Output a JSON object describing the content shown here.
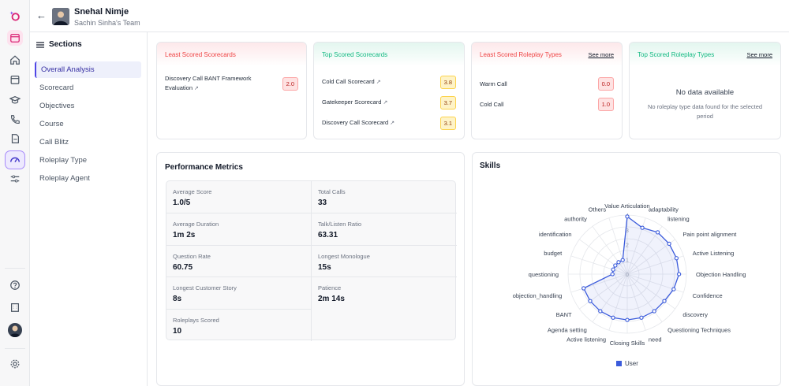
{
  "header": {
    "user_name": "Snehal Nimje",
    "team": "Sachin Sinha's Team"
  },
  "sections": {
    "title": "Sections",
    "items": [
      {
        "label": "Overall Analysis",
        "active": true
      },
      {
        "label": "Scorecard"
      },
      {
        "label": "Objectives"
      },
      {
        "label": "Course"
      },
      {
        "label": "Call Blitz"
      },
      {
        "label": "Roleplay Type"
      },
      {
        "label": "Roleplay Agent"
      }
    ]
  },
  "cards": {
    "least_scorecards": {
      "title": "Least Scored Scorecards",
      "rows": [
        {
          "label": "Discovery Call BANT Framework Evaluation",
          "score": "2.0"
        }
      ]
    },
    "top_scorecards": {
      "title": "Top Scored Scorecards",
      "rows": [
        {
          "label": "Cold Call Scorecard",
          "score": "3.8"
        },
        {
          "label": "Gatekeeper Scorecard",
          "score": "3.7"
        },
        {
          "label": "Discovery Call Scorecard",
          "score": "3.1"
        }
      ]
    },
    "least_roleplay": {
      "title": "Least Scored Roleplay Types",
      "see_more": "See more",
      "rows": [
        {
          "label": "Warm Call",
          "score": "0.0"
        },
        {
          "label": "Cold Call",
          "score": "1.0"
        }
      ]
    },
    "top_roleplay": {
      "title": "Top Scored Roleplay Types",
      "see_more": "See more",
      "empty_title": "No data available",
      "empty_sub": "No roleplay type data found for the selected period"
    }
  },
  "performance": {
    "title": "Performance Metrics",
    "metrics": [
      {
        "label": "Average Score",
        "value": "1.0/5"
      },
      {
        "label": "Total Calls",
        "value": "33"
      },
      {
        "label": "Average Duration",
        "value": "1m 2s"
      },
      {
        "label": "Talk/Listen Ratio",
        "value": "63.31"
      },
      {
        "label": "Question Rate",
        "value": "60.75"
      },
      {
        "label": "Longest Monologue",
        "value": "15s"
      },
      {
        "label": "Longest Customer Story",
        "value": "8s"
      },
      {
        "label": "Patience",
        "value": "2m 14s"
      },
      {
        "label": "Roleplays Scored",
        "value": "10"
      }
    ]
  },
  "skills": {
    "title": "Skills",
    "chart_data": {
      "type": "radar",
      "categories": [
        "Value Articulation",
        "adaptability",
        "listening",
        "Pain point alignment",
        "Active Listening",
        "Objection Handling",
        "Confidence",
        "discovery",
        "Questioning Techniques",
        "need",
        "Closing Skills",
        "Active listening",
        "Agenda setting",
        "BANT",
        "objection_handling",
        "questioning",
        "budget",
        "identification",
        "authority",
        "Others"
      ],
      "ticks": [
        "0",
        "1",
        "2",
        "3",
        "4"
      ],
      "range": [
        0,
        4
      ],
      "series": [
        {
          "name": "User",
          "color": "#3b5bdb",
          "values": [
            3.9,
            3.3,
            3.5,
            3.5,
            3.5,
            3.5,
            3.3,
            3.1,
            3.1,
            3.1,
            3.1,
            3.1,
            3.1,
            3.1,
            3.1,
            1.0,
            1.0,
            1.0,
            1.0,
            1.0
          ]
        }
      ]
    }
  }
}
